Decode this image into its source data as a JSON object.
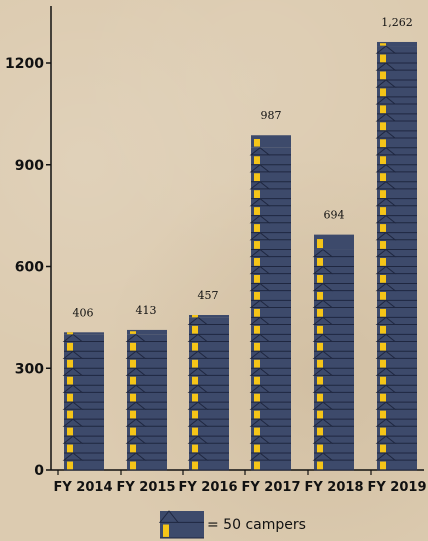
{
  "chart_data": {
    "type": "bar",
    "categories": [
      "FY 2014",
      "FY 2015",
      "FY 2016",
      "FY 2017",
      "FY 2018",
      "FY 2019"
    ],
    "values": [
      406,
      413,
      457,
      987,
      694,
      1262
    ],
    "data_labels": [
      "406",
      "413",
      "457",
      "987",
      "694",
      "1,262"
    ],
    "yticks": [
      0,
      300,
      600,
      900,
      1200
    ],
    "ytick_labels": [
      "0",
      "300",
      "600",
      "900",
      "1200"
    ],
    "ylim": [
      0,
      1350
    ],
    "unit_value": 50,
    "grid": false,
    "legend": {
      "text": "= 50 campers",
      "icon": "cabin-icon",
      "placement": "bottom-center"
    },
    "colors": {
      "cabin": "#3d4a6b",
      "cabin_edge": "#1f2740",
      "door": "#f5c518",
      "axis": "#111111"
    }
  }
}
